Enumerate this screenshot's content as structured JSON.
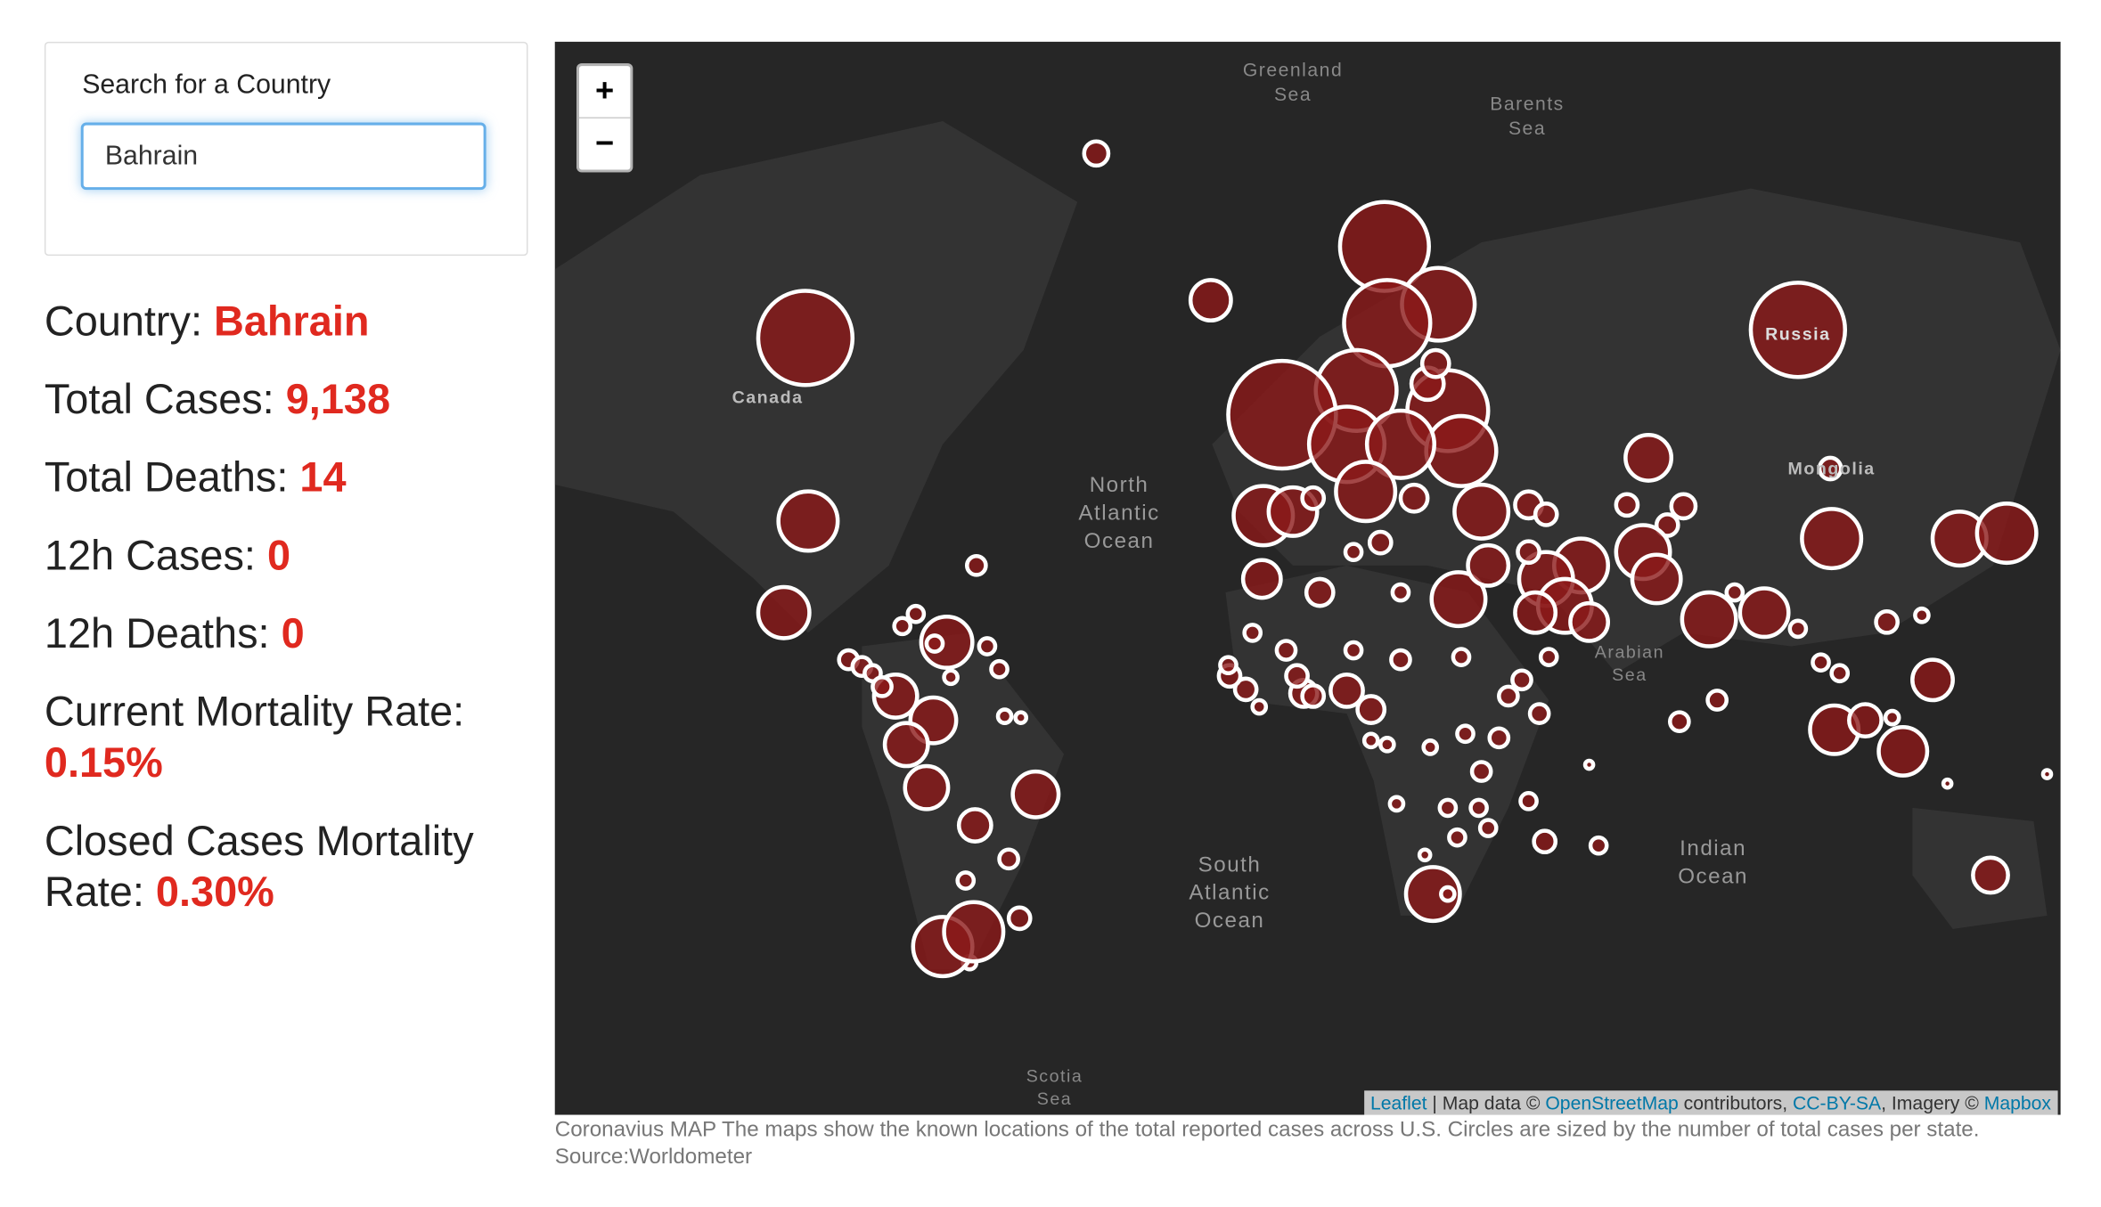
{
  "search": {
    "label": "Search for a Country",
    "value": "Bahrain"
  },
  "stats": [
    {
      "label": "Country:",
      "value": "Bahrain"
    },
    {
      "label": "Total Cases:",
      "value": "9,138"
    },
    {
      "label": "Total Deaths:",
      "value": "14"
    },
    {
      "label": "12h Cases:",
      "value": "0"
    },
    {
      "label": "12h Deaths:",
      "value": "0"
    },
    {
      "label": "Current Mortality Rate:",
      "value": "0.15%"
    },
    {
      "label": "Closed Cases Mortality Rate:",
      "value": "0.30%"
    }
  ],
  "map": {
    "zoom_in": "+",
    "zoom_out": "−",
    "labels": [
      {
        "lines": [
          "Greenland",
          "Sea"
        ]
      },
      {
        "lines": [
          "Barents",
          "Sea"
        ]
      },
      {
        "lines": [
          "North",
          "Atlantic",
          "Ocean"
        ]
      },
      {
        "lines": [
          "South",
          "Atlantic",
          "Ocean"
        ]
      },
      {
        "lines": [
          "Indian",
          "Ocean"
        ]
      },
      {
        "lines": [
          "Arabian",
          "Sea"
        ]
      },
      {
        "lines": [
          "Scotia",
          "Sea"
        ]
      },
      {
        "lines": [
          "Canada"
        ]
      },
      {
        "lines": [
          "Russia"
        ]
      },
      {
        "lines": [
          "Mongolia"
        ]
      }
    ],
    "attribution": {
      "leaflet": "Leaflet",
      "t1": " | Map data © ",
      "osm": "OpenStreetMap",
      "t2": " contributors, ",
      "cc": "CC-BY-SA",
      "t3": ", Imagery © ",
      "mapbox": "Mapbox"
    }
  },
  "caption": "Coronavius MAP The maps show the known locations of the total reported cases across U.S. Circles are sized by the number of total cases per state. Source:Worldometer"
}
